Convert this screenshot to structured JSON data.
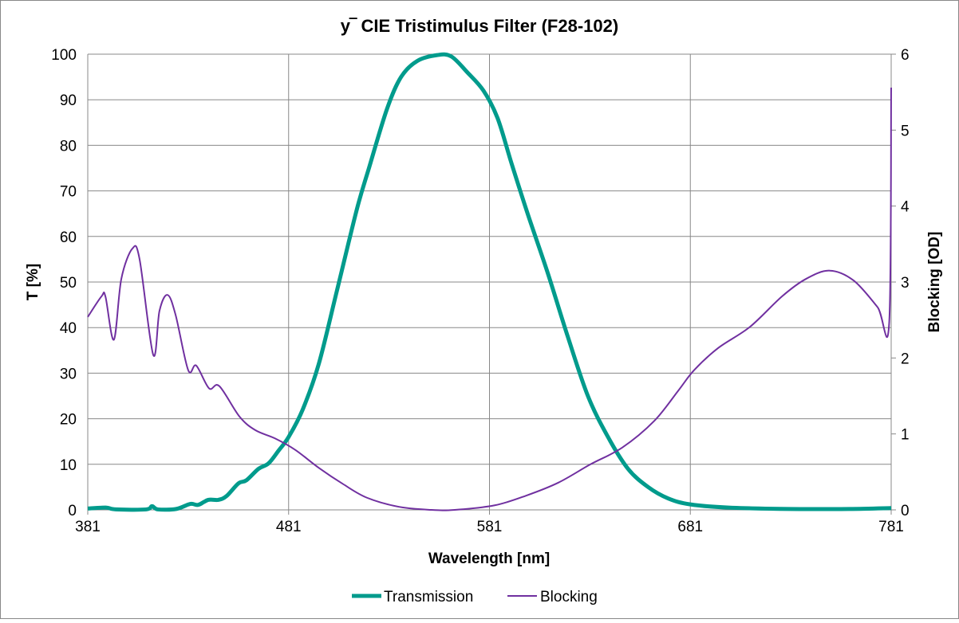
{
  "chart_data": {
    "type": "line",
    "title": "y‾ CIE Tristimulus Filter (F28-102)",
    "xlabel": "Wavelength [nm]",
    "ylabel": "T [%]",
    "y2label": "Blocking [OD]",
    "xlim": [
      381,
      781
    ],
    "ylim": [
      0,
      100
    ],
    "y2lim": [
      0,
      6
    ],
    "xticks": [
      "381",
      "481",
      "581",
      "681",
      "781"
    ],
    "yticks": [
      "0",
      "10",
      "20",
      "30",
      "40",
      "50",
      "60",
      "70",
      "80",
      "90",
      "100"
    ],
    "y2ticks": [
      "0",
      "1",
      "2",
      "3",
      "4",
      "5",
      "6"
    ],
    "grid": true,
    "legend_position": "bottom",
    "series": [
      {
        "name": "Transmission",
        "axis": "left",
        "color": "#009b8c",
        "x": [
          381,
          390,
          395,
          410,
          413,
          416,
          425,
          432,
          436,
          441,
          446,
          450,
          456,
          460,
          466,
          471,
          476,
          481,
          488,
          496,
          505,
          515,
          521,
          530,
          537,
          545,
          555,
          562,
          570,
          578,
          585,
          592,
          600,
          610,
          620,
          630,
          640,
          650,
          660,
          670,
          681,
          700,
          730,
          760,
          781
        ],
        "y": [
          0.3,
          0.5,
          0.1,
          0.1,
          0.8,
          0.1,
          0.2,
          1.3,
          1.1,
          2.2,
          2.2,
          3,
          5.8,
          6.5,
          9,
          10.2,
          13,
          16,
          22,
          32,
          48,
          66,
          75,
          88,
          95,
          98.5,
          99.8,
          99.5,
          96,
          92,
          86,
          76,
          65,
          52,
          38,
          25,
          16,
          9,
          5,
          2.5,
          1.2,
          0.5,
          0.2,
          0.2,
          0.4
        ]
      },
      {
        "name": "Blocking",
        "axis": "right",
        "color": "#7030a0",
        "x": [
          381,
          387.8,
          389.8,
          394,
          397.7,
          403.2,
          406.8,
          413.6,
          416.7,
          420.7,
          424.7,
          431,
          435,
          441.4,
          446.5,
          456.5,
          464.4,
          474.3,
          484.3,
          496.2,
          508.1,
          520,
          536,
          551.8,
          563.7,
          583.6,
          599.5,
          615.4,
          631.3,
          647.1,
          663,
          675,
          682.9,
          694.8,
          710.7,
          726.6,
          738.5,
          750.4,
          762.3,
          774.2,
          780,
          781
        ],
        "y": [
          2.54,
          2.81,
          2.81,
          2.24,
          3.04,
          3.44,
          3.3,
          2.04,
          2.62,
          2.83,
          2.57,
          1.84,
          1.9,
          1.6,
          1.63,
          1.23,
          1.05,
          0.94,
          0.79,
          0.55,
          0.34,
          0.16,
          0.04,
          0.0,
          0.0,
          0.06,
          0.19,
          0.36,
          0.6,
          0.82,
          1.17,
          1.57,
          1.84,
          2.13,
          2.41,
          2.81,
          3.04,
          3.15,
          3.02,
          2.67,
          2.46,
          5.56
        ]
      }
    ]
  }
}
